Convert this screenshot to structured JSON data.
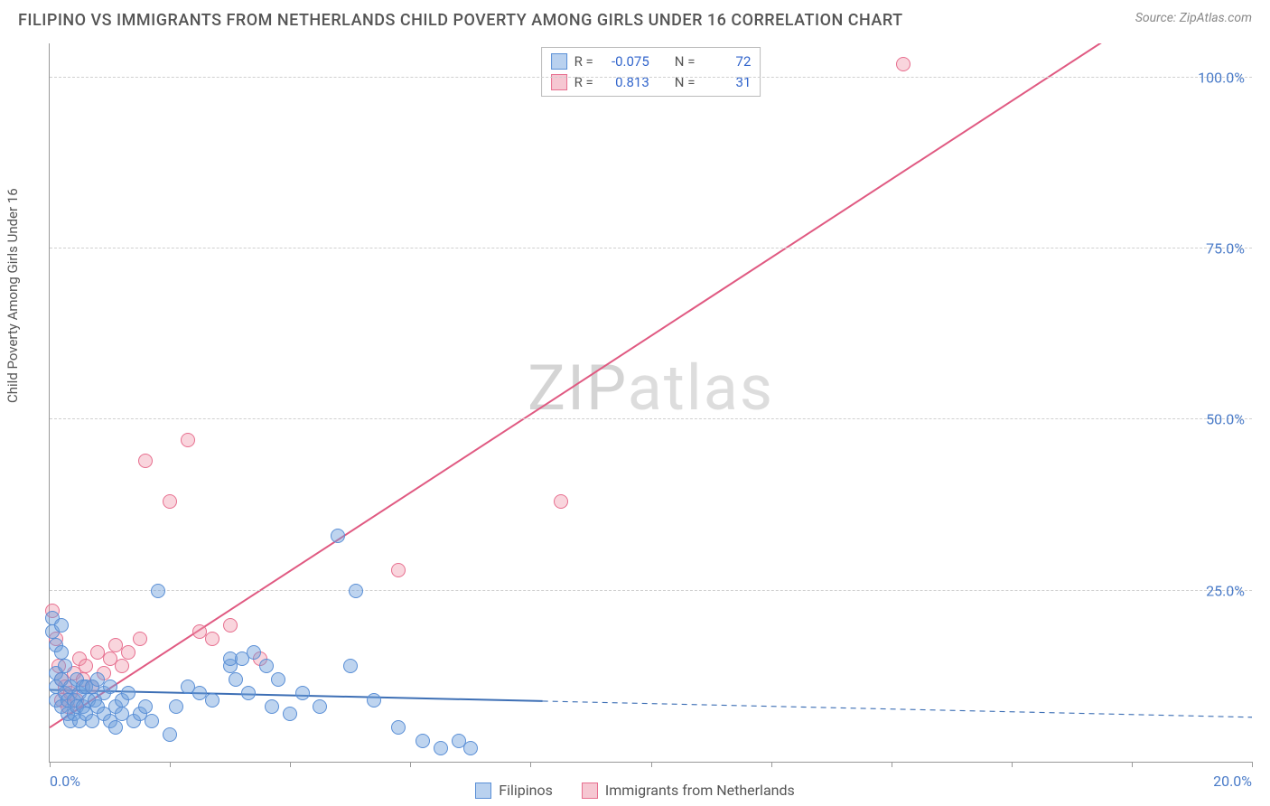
{
  "header": {
    "title": "FILIPINO VS IMMIGRANTS FROM NETHERLANDS CHILD POVERTY AMONG GIRLS UNDER 16 CORRELATION CHART",
    "source_prefix": "Source: ",
    "source_name": "ZipAtlas.com"
  },
  "watermark": {
    "zip": "ZIP",
    "atlas": "atlas"
  },
  "axes": {
    "ylabel": "Child Poverty Among Girls Under 16",
    "xlim": [
      0,
      20
    ],
    "ylim": [
      0,
      105
    ],
    "yticks": [
      25,
      50,
      75,
      100
    ],
    "ytick_labels": [
      "25.0%",
      "50.0%",
      "75.0%",
      "100.0%"
    ],
    "xticks": [
      0,
      2,
      4,
      6,
      8,
      10,
      12,
      14,
      16,
      18,
      20
    ],
    "xtick_labels": {
      "0": "0.0%",
      "20": "20.0%"
    },
    "grid_color": "#d0d0d0",
    "axis_color": "#999999"
  },
  "series": {
    "blue": {
      "label": "Filipinos",
      "fill": "rgba(110,160,220,0.45)",
      "stroke": "#5a8fd6",
      "r_label": "R = ",
      "r_value": "-0.075",
      "n_label": "N = ",
      "n_value": "72",
      "trend": {
        "x1": 0,
        "y1": 10.5,
        "x2": 20,
        "y2": 6.5,
        "solid_until_x": 8.2,
        "color": "#3d6fb5",
        "width": 2
      },
      "points": [
        [
          0.05,
          21
        ],
        [
          0.05,
          19
        ],
        [
          0.1,
          17
        ],
        [
          0.1,
          13
        ],
        [
          0.1,
          11
        ],
        [
          0.1,
          9
        ],
        [
          0.2,
          20
        ],
        [
          0.2,
          16
        ],
        [
          0.2,
          12
        ],
        [
          0.2,
          8
        ],
        [
          0.25,
          14
        ],
        [
          0.25,
          10
        ],
        [
          0.3,
          9
        ],
        [
          0.3,
          7
        ],
        [
          0.35,
          11
        ],
        [
          0.35,
          6
        ],
        [
          0.4,
          7
        ],
        [
          0.4,
          9
        ],
        [
          0.45,
          12
        ],
        [
          0.45,
          8
        ],
        [
          0.5,
          6
        ],
        [
          0.5,
          10
        ],
        [
          0.55,
          11
        ],
        [
          0.55,
          8
        ],
        [
          0.6,
          7
        ],
        [
          0.6,
          11
        ],
        [
          0.65,
          9
        ],
        [
          0.7,
          6
        ],
        [
          0.7,
          11
        ],
        [
          0.75,
          9
        ],
        [
          0.8,
          8
        ],
        [
          0.8,
          12
        ],
        [
          0.9,
          7
        ],
        [
          0.9,
          10
        ],
        [
          1.0,
          6
        ],
        [
          1.0,
          11
        ],
        [
          1.1,
          8
        ],
        [
          1.1,
          5
        ],
        [
          1.2,
          9
        ],
        [
          1.2,
          7
        ],
        [
          1.3,
          10
        ],
        [
          1.4,
          6
        ],
        [
          1.5,
          7
        ],
        [
          1.6,
          8
        ],
        [
          1.7,
          6
        ],
        [
          1.8,
          25
        ],
        [
          2.0,
          4
        ],
        [
          2.1,
          8
        ],
        [
          2.3,
          11
        ],
        [
          2.5,
          10
        ],
        [
          2.7,
          9
        ],
        [
          3.0,
          14
        ],
        [
          3.0,
          15
        ],
        [
          3.1,
          12
        ],
        [
          3.2,
          15
        ],
        [
          3.3,
          10
        ],
        [
          3.4,
          16
        ],
        [
          3.6,
          14
        ],
        [
          3.7,
          8
        ],
        [
          3.8,
          12
        ],
        [
          4.0,
          7
        ],
        [
          4.2,
          10
        ],
        [
          4.5,
          8
        ],
        [
          4.8,
          33
        ],
        [
          5.0,
          14
        ],
        [
          5.1,
          25
        ],
        [
          5.4,
          9
        ],
        [
          5.8,
          5
        ],
        [
          6.2,
          3
        ],
        [
          6.5,
          2
        ],
        [
          6.8,
          3
        ],
        [
          7.0,
          2
        ]
      ]
    },
    "pink": {
      "label": "Immigrants from Netherlands",
      "fill": "rgba(240,150,170,0.40)",
      "stroke": "#e76f8f",
      "r_label": "R = ",
      "r_value": "0.813",
      "n_label": "N = ",
      "n_value": "31",
      "trend": {
        "x1": 0,
        "y1": 5,
        "x2": 18,
        "y2": 108,
        "color": "#e05a82",
        "width": 2
      },
      "points": [
        [
          0.05,
          22
        ],
        [
          0.1,
          18
        ],
        [
          0.15,
          14
        ],
        [
          0.2,
          12
        ],
        [
          0.2,
          9
        ],
        [
          0.25,
          11
        ],
        [
          0.3,
          8
        ],
        [
          0.35,
          10
        ],
        [
          0.4,
          13
        ],
        [
          0.45,
          9
        ],
        [
          0.5,
          15
        ],
        [
          0.55,
          12
        ],
        [
          0.6,
          14
        ],
        [
          0.7,
          11
        ],
        [
          0.8,
          16
        ],
        [
          0.9,
          13
        ],
        [
          1.0,
          15
        ],
        [
          1.1,
          17
        ],
        [
          1.2,
          14
        ],
        [
          1.3,
          16
        ],
        [
          1.5,
          18
        ],
        [
          1.6,
          44
        ],
        [
          2.0,
          38
        ],
        [
          2.3,
          47
        ],
        [
          2.5,
          19
        ],
        [
          2.7,
          18
        ],
        [
          3.0,
          20
        ],
        [
          3.5,
          15
        ],
        [
          5.8,
          28
        ],
        [
          8.5,
          38
        ],
        [
          14.2,
          102
        ]
      ]
    },
    "marker_radius": 8
  },
  "legend_style": {
    "swatch_blue_fill": "#b9d1ef",
    "swatch_blue_border": "#5a8fd6",
    "swatch_pink_fill": "#f6c7d2",
    "swatch_pink_border": "#e76f8f"
  }
}
